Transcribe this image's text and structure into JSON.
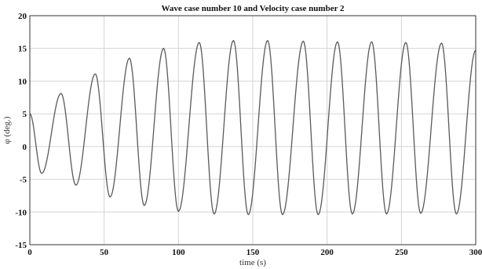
{
  "chart_data": {
    "type": "line",
    "title": "Wave case number 10 and Velocity case number 2",
    "xlabel": "time (s)",
    "ylabel": "φ (deg.)",
    "xlim": [
      0,
      300
    ],
    "ylim": [
      -15,
      20
    ],
    "xticks": [
      0,
      50,
      100,
      150,
      200,
      250,
      300
    ],
    "yticks": [
      -15,
      -10,
      -5,
      0,
      5,
      10,
      15,
      20
    ],
    "grid": true,
    "legend": "none",
    "line_color": "#5a5a5a",
    "series": [
      {
        "x": [
          0,
          8,
          21,
          31,
          44,
          54,
          67,
          77,
          90,
          100,
          114,
          124,
          137,
          147,
          160,
          170,
          184,
          194,
          207,
          217,
          230,
          240,
          253,
          263,
          277,
          287,
          300
        ],
        "values": [
          5,
          -4.1,
          8.1,
          -5.9,
          11.1,
          -7.7,
          13.5,
          -9.0,
          15.0,
          -9.9,
          15.9,
          -10.3,
          16.2,
          -10.4,
          16.2,
          -10.4,
          16.1,
          -10.4,
          16.0,
          -10.3,
          16.0,
          -10.3,
          15.9,
          -10.2,
          15.8,
          -10.3,
          14.7
        ]
      }
    ]
  }
}
